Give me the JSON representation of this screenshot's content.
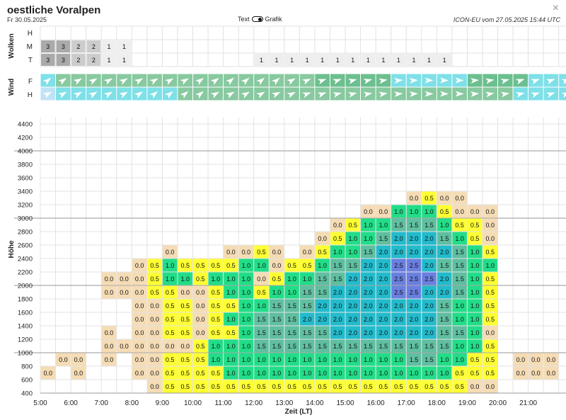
{
  "header": {
    "title": "oestliche Voralpen",
    "date": "Fr 30.05.2025",
    "toggle_left": "Text",
    "toggle_right": "Grafik",
    "model_info": "ICON-EU vom 27.05.2025 15:44 UTC",
    "close_symbol": "×"
  },
  "colors": {
    "0.0": "#f5dcb5",
    "0.5": "#ffff33",
    "1.0": "#22dd88",
    "1.5": "#5fbfa0",
    "2.0": "#22bbcc",
    "2.5": "#6a7fe0",
    "cloud3": "#aaaaaa",
    "cloud2": "#cccccc",
    "cloud1": "#eeeeee",
    "wind_dark": "#6cbf8f",
    "wind_mid": "#88c9a0",
    "wind_cyan": "#7fe0e8",
    "wind_light": "#bfe3f5"
  },
  "x_axis": {
    "label": "Zeit (LT)",
    "ticks": [
      "5:00",
      "6:00",
      "7:00",
      "8:00",
      "9:00",
      "10:00",
      "11:00",
      "12:00",
      "13:00",
      "14:00",
      "15:00",
      "16:00",
      "17:00",
      "18:00",
      "19:00",
      "20:00",
      "21:00"
    ]
  },
  "clouds": {
    "section_label": "Wolken",
    "rows": [
      {
        "label": "H",
        "cells": {}
      },
      {
        "label": "M",
        "cells": {
          "0": "3",
          "1": "3",
          "2": "2",
          "3": "2",
          "4": "1",
          "5": "1"
        }
      },
      {
        "label": "T",
        "cells": {
          "0": "3",
          "1": "3",
          "2": "2",
          "3": "2",
          "4": "1",
          "5": "1",
          "14": "1",
          "15": "1",
          "16": "1",
          "17": "1",
          "18": "1",
          "19": "1",
          "20": "1",
          "21": "1",
          "22": "1",
          "23": "1",
          "24": "1",
          "25": "1",
          "26": "1"
        }
      }
    ]
  },
  "wind": {
    "section_label": "Wind",
    "rows": [
      {
        "label": "F",
        "colors": [
          "wind_cyan",
          "wind_mid",
          "wind_mid",
          "wind_mid",
          "wind_mid",
          "wind_mid",
          "wind_mid",
          "wind_mid",
          "wind_mid",
          "wind_mid",
          "wind_mid",
          "wind_mid",
          "wind_mid",
          "wind_mid",
          "wind_mid",
          "wind_mid",
          "wind_mid",
          "wind_mid",
          "wind_dark",
          "wind_dark",
          "wind_dark",
          "wind_dark",
          "wind_dark",
          "wind_cyan",
          "wind_cyan",
          "wind_cyan",
          "wind_cyan",
          "wind_cyan",
          "wind_dark",
          "wind_dark",
          "wind_dark",
          "wind_dark",
          "wind_cyan",
          "wind_cyan",
          "wind_cyan"
        ],
        "angles": [
          -40,
          -35,
          -30,
          -30,
          -30,
          -30,
          -30,
          -30,
          -30,
          -30,
          -35,
          -35,
          -40,
          -40,
          -40,
          -40,
          -30,
          -25,
          -20,
          -20,
          -15,
          -15,
          -10,
          -5,
          -5,
          0,
          0,
          0,
          -5,
          -10,
          -15,
          -20,
          -20,
          -20,
          -20
        ]
      },
      {
        "label": "H",
        "colors": [
          "wind_light",
          "wind_cyan",
          "wind_cyan",
          "wind_cyan",
          "wind_cyan",
          "wind_cyan",
          "wind_cyan",
          "wind_cyan",
          "wind_cyan",
          "wind_mid",
          "wind_mid",
          "wind_mid",
          "wind_mid",
          "wind_mid",
          "wind_mid",
          "wind_mid",
          "wind_mid",
          "wind_mid",
          "wind_mid",
          "wind_mid",
          "wind_mid",
          "wind_mid",
          "wind_mid",
          "wind_mid",
          "wind_mid",
          "wind_mid",
          "wind_mid",
          "wind_mid",
          "wind_mid",
          "wind_mid",
          "wind_mid",
          "wind_cyan",
          "wind_cyan",
          "wind_cyan",
          "wind_cyan"
        ],
        "angles": [
          -30,
          -30,
          -30,
          -30,
          -30,
          -30,
          -35,
          -40,
          -40,
          -40,
          -40,
          -30,
          -30,
          -30,
          -30,
          -25,
          -25,
          -20,
          -20,
          -15,
          -15,
          -10,
          -10,
          -5,
          -5,
          0,
          0,
          0,
          -5,
          -10,
          -10,
          -15,
          -20,
          -20,
          -20
        ]
      }
    ]
  },
  "chart_data": {
    "type": "heatmap",
    "xlabel": "Zeit (LT)",
    "ylabel": "Höhe",
    "y_ticks": [
      400,
      600,
      800,
      1000,
      1200,
      1400,
      1600,
      1800,
      2000,
      2200,
      2400,
      2600,
      2800,
      3000,
      3200,
      3400,
      3600,
      3800,
      4000,
      4200,
      4400
    ],
    "y_range": [
      400,
      4500
    ],
    "reference_lines": [
      1000,
      2000,
      3000,
      4000
    ],
    "slot_minutes": 30,
    "first_slot": "5:00",
    "cells_by_altitude": {
      "3200": {
        "24": "0.0",
        "25": "0.5",
        "26": "0.0",
        "27": "0.0"
      },
      "3000": {
        "21": "0.0",
        "22": "0.0",
        "23": "1.0",
        "24": "1.0",
        "25": "1.0",
        "26": "0.5",
        "27": "0.0",
        "28": "0.0",
        "29": "0.0"
      },
      "2800": {
        "19": "0.0",
        "20": "0.5",
        "21": "1.0",
        "22": "1.0",
        "23": "1.5",
        "24": "1.5",
        "25": "1.5",
        "26": "1.0",
        "27": "0.5",
        "28": "0.5",
        "29": "0.0"
      },
      "2600": {
        "18": "0.0",
        "19": "0.5",
        "20": "1.0",
        "21": "1.0",
        "22": "1.5",
        "23": "2.0",
        "24": "2.0",
        "25": "2.0",
        "26": "1.5",
        "27": "1.0",
        "28": "0.5",
        "29": "0.0"
      },
      "2400": {
        "8": "0.0",
        "12": "0.0",
        "13": "0.0",
        "14": "0.5",
        "15": "0.0",
        "17": "0.0",
        "18": "0.5",
        "19": "1.0",
        "20": "1.0",
        "21": "1.5",
        "22": "2.0",
        "23": "2.0",
        "24": "2.0",
        "25": "2.0",
        "26": "2.0",
        "27": "1.5",
        "28": "1.0",
        "29": "0.5"
      },
      "2200": {
        "6": "0.0",
        "7": "0.5",
        "8": "1.0",
        "9": "0.5",
        "10": "0.5",
        "11": "0.5",
        "12": "0.5",
        "13": "1.0",
        "14": "1.0",
        "15": "0.0",
        "16": "0.5",
        "17": "0.5",
        "18": "1.0",
        "19": "1.5",
        "20": "1.5",
        "21": "2.0",
        "22": "2.0",
        "23": "2.5",
        "24": "2.5",
        "25": "2.0",
        "26": "1.5",
        "27": "1.5",
        "28": "1.0",
        "29": "1.0"
      },
      "2000": {
        "4": "0.0",
        "5": "0.0",
        "6": "0.0",
        "7": "0.5",
        "8": "1.0",
        "9": "1.0",
        "10": "0.5",
        "11": "1.0",
        "12": "1.0",
        "13": "1.0",
        "14": "0.0",
        "15": "0.5",
        "16": "1.0",
        "17": "1.0",
        "18": "1.5",
        "19": "1.5",
        "20": "2.0",
        "21": "2.0",
        "22": "2.0",
        "23": "2.5",
        "24": "2.5",
        "25": "2.5",
        "26": "2.0",
        "27": "1.5",
        "28": "1.0",
        "29": "0.5"
      },
      "1800": {
        "4": "0.0",
        "5": "0.0",
        "6": "0.0",
        "7": "0.5",
        "8": "0.5",
        "9": "0.0",
        "10": "0.0",
        "11": "0.5",
        "12": "1.0",
        "13": "1.0",
        "14": "0.5",
        "15": "1.0",
        "16": "1.0",
        "17": "1.5",
        "18": "1.5",
        "19": "2.0",
        "20": "2.0",
        "21": "2.0",
        "22": "2.0",
        "23": "2.5",
        "24": "2.5",
        "25": "2.0",
        "26": "2.0",
        "27": "1.5",
        "28": "1.0",
        "29": "0.5"
      },
      "1600": {
        "6": "0.0",
        "7": "0.0",
        "8": "0.5",
        "9": "0.5",
        "10": "0.0",
        "11": "0.5",
        "12": "0.5",
        "13": "1.0",
        "14": "1.0",
        "15": "1.5",
        "16": "1.5",
        "17": "1.5",
        "18": "2.0",
        "19": "2.0",
        "20": "2.0",
        "21": "2.0",
        "22": "2.0",
        "23": "2.0",
        "24": "2.0",
        "25": "2.0",
        "26": "1.5",
        "27": "1.0",
        "28": "1.0",
        "29": "0.5"
      },
      "1400": {
        "6": "0.0",
        "7": "0.0",
        "8": "0.5",
        "9": "0.5",
        "10": "0.0",
        "11": "0.5",
        "12": "1.0",
        "13": "1.0",
        "14": "1.5",
        "15": "1.5",
        "16": "1.5",
        "17": "2.0",
        "18": "2.0",
        "19": "2.0",
        "20": "2.0",
        "21": "2.0",
        "22": "2.0",
        "23": "2.0",
        "24": "2.0",
        "25": "2.0",
        "26": "1.5",
        "27": "1.0",
        "28": "1.0",
        "29": "0.5"
      },
      "1200": {
        "4": "0.0",
        "6": "0.0",
        "7": "0.0",
        "8": "0.5",
        "9": "0.5",
        "10": "0.0",
        "11": "0.5",
        "12": "0.5",
        "13": "1.0",
        "14": "1.5",
        "15": "1.5",
        "16": "1.5",
        "17": "1.5",
        "18": "1.5",
        "19": "2.0",
        "20": "2.0",
        "21": "2.0",
        "22": "2.0",
        "23": "2.0",
        "24": "2.0",
        "25": "2.0",
        "26": "1.5",
        "27": "1.5",
        "28": "1.0",
        "29": "0.0"
      },
      "1000": {
        "4": "0.0",
        "5": "0.0",
        "6": "0.0",
        "7": "0.0",
        "8": "0.0",
        "9": "0.0",
        "10": "0.5",
        "11": "1.0",
        "12": "1.0",
        "13": "1.0",
        "14": "1.5",
        "15": "1.5",
        "16": "1.5",
        "17": "1.5",
        "18": "1.5",
        "19": "1.5",
        "20": "1.5",
        "21": "1.5",
        "22": "1.5",
        "23": "1.5",
        "24": "1.5",
        "25": "1.5",
        "26": "1.5",
        "27": "1.0",
        "28": "1.0",
        "29": "0.5"
      },
      "800": {
        "1": "0.0",
        "2": "0.0",
        "4": "0.0",
        "6": "0.0",
        "7": "0.0",
        "8": "0.5",
        "9": "0.5",
        "10": "0.5",
        "11": "1.0",
        "12": "1.0",
        "13": "1.0",
        "14": "1.0",
        "15": "1.0",
        "16": "1.0",
        "17": "1.0",
        "18": "1.0",
        "19": "1.0",
        "20": "1.0",
        "21": "1.0",
        "22": "1.0",
        "23": "1.0",
        "24": "1.5",
        "25": "1.5",
        "26": "1.0",
        "27": "1.0",
        "28": "0.5",
        "29": "0.5",
        "31": "0.0",
        "32": "0.0",
        "33": "0.0"
      },
      "600": {
        "0": "0.0",
        "2": "0.0",
        "6": "0.0",
        "7": "0.0",
        "8": "0.5",
        "9": "0.5",
        "10": "0.5",
        "11": "0.5",
        "12": "1.0",
        "13": "1.0",
        "14": "1.0",
        "15": "1.0",
        "16": "1.0",
        "17": "1.0",
        "18": "1.0",
        "19": "1.0",
        "20": "1.0",
        "21": "1.0",
        "22": "1.0",
        "23": "1.0",
        "24": "1.0",
        "25": "1.0",
        "26": "1.0",
        "27": "0.5",
        "28": "0.5",
        "29": "0.5",
        "31": "0.0",
        "32": "0.0",
        "33": "0.0"
      },
      "400": {
        "7": "0.0",
        "8": "0.5",
        "9": "0.5",
        "10": "0.5",
        "11": "0.5",
        "12": "0.5",
        "13": "0.5",
        "14": "0.5",
        "15": "0.5",
        "16": "0.5",
        "17": "0.5",
        "18": "0.5",
        "19": "0.5",
        "20": "0.5",
        "21": "0.5",
        "22": "0.5",
        "23": "0.5",
        "24": "0.5",
        "25": "0.5",
        "26": "0.5",
        "27": "0.5",
        "28": "0.0",
        "29": "0.0"
      }
    }
  }
}
